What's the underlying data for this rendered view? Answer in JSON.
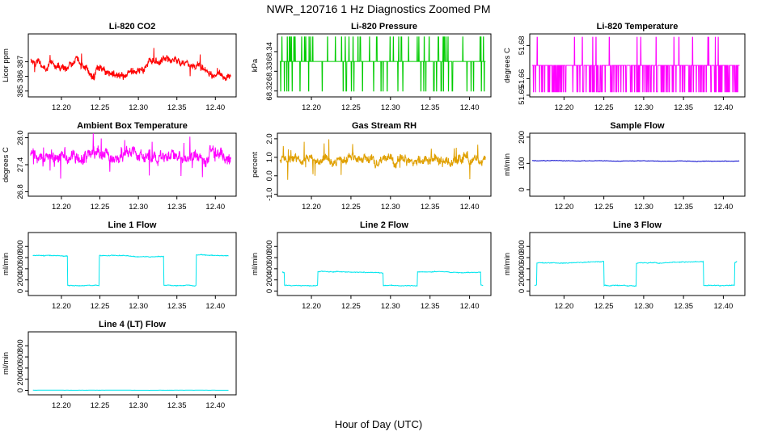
{
  "page": {
    "title": "NWR_120716  1 Hz Diagnostics Zoomed PM",
    "xlabel": "Hour of Day (UTC)"
  },
  "chart_data": [
    {
      "type": "line",
      "title": "Li-820 CO2",
      "ylabel": "Licor ppm",
      "color": "#ff0000",
      "xlim": [
        12.157,
        12.427
      ],
      "xticks": [
        "12.20",
        "12.25",
        "12.30",
        "12.35",
        "12.40"
      ],
      "ylim": [
        384.6,
        388.9
      ],
      "yticks": [
        "385",
        "386",
        "387"
      ],
      "series": [
        {
          "name": "co2",
          "x": [
            12.16,
            12.18,
            12.2,
            12.22,
            12.24,
            12.26,
            12.28,
            12.3,
            12.32,
            12.34,
            12.36,
            12.38,
            12.4,
            12.42
          ],
          "y": [
            387.0,
            386.8,
            386.5,
            387.0,
            386.2,
            386.3,
            386.0,
            386.3,
            386.9,
            387.2,
            387.0,
            386.6,
            386.2,
            386.0
          ]
        }
      ]
    },
    {
      "type": "line",
      "title": "Li-820 Pressure",
      "ylabel": "kPa",
      "color": "#00cc00",
      "xlim": [
        12.157,
        12.427
      ],
      "xticks": [
        "12.20",
        "12.25",
        "12.30",
        "12.35",
        "12.40"
      ],
      "ylim": [
        68.317,
        68.349
      ],
      "yticks": [
        "68.32",
        "68.33",
        "68.34"
      ],
      "series": [
        {
          "name": "pressure",
          "x": [
            12.16,
            12.2,
            12.25,
            12.3,
            12.35,
            12.4,
            12.42
          ],
          "y": [
            68.335,
            68.335,
            68.335,
            68.335,
            68.335,
            68.335,
            68.335
          ]
        }
      ]
    },
    {
      "type": "line",
      "title": "Li-820 Temperature",
      "ylabel": "degrees C",
      "color": "#ff00ff",
      "xlim": [
        12.157,
        12.427
      ],
      "xticks": [
        "12.20",
        "12.25",
        "12.30",
        "12.35",
        "12.40"
      ],
      "ylim": [
        51.649,
        51.687
      ],
      "yticks": [
        "51.65",
        "51.66",
        "51.68"
      ],
      "series": [
        {
          "name": "temperature",
          "x": [
            12.16,
            12.2,
            12.25,
            12.3,
            12.35,
            12.4,
            12.42
          ],
          "y": [
            51.668,
            51.668,
            51.668,
            51.668,
            51.668,
            51.668,
            51.668
          ]
        }
      ]
    },
    {
      "type": "line",
      "title": "Ambient Box Temperature",
      "ylabel": "degrees C",
      "color": "#ff00ff",
      "xlim": [
        12.157,
        12.427
      ],
      "xticks": [
        "12.20",
        "12.25",
        "12.30",
        "12.35",
        "12.40"
      ],
      "ylim": [
        26.7,
        28.1
      ],
      "yticks": [
        "26.8",
        "27.4",
        "28.0"
      ],
      "series": [
        {
          "name": "box_temperature",
          "x": [
            12.16,
            12.2,
            12.25,
            12.3,
            12.35,
            12.4,
            12.42
          ],
          "y": [
            27.6,
            27.55,
            27.6,
            27.55,
            27.6,
            27.6,
            27.55
          ]
        }
      ]
    },
    {
      "type": "line",
      "title": "Gas Stream RH",
      "ylabel": "percent",
      "color": "#e0a000",
      "xlim": [
        12.157,
        12.427
      ],
      "xticks": [
        "12.20",
        "12.25",
        "12.30",
        "12.35",
        "12.40"
      ],
      "ylim": [
        -1.1,
        2.3
      ],
      "yticks": [
        "-1.0",
        "0.0",
        "1.0",
        "2.0"
      ],
      "series": [
        {
          "name": "rh",
          "x": [
            12.16,
            12.2,
            12.25,
            12.3,
            12.35,
            12.4,
            12.42
          ],
          "y": [
            0.9,
            0.85,
            0.95,
            0.85,
            0.95,
            0.85,
            0.8
          ]
        }
      ]
    },
    {
      "type": "line",
      "title": "Sample Flow",
      "ylabel": "ml/min",
      "color": "#0000cc",
      "xlim": [
        12.157,
        12.427
      ],
      "xticks": [
        "12.20",
        "12.25",
        "12.30",
        "12.35",
        "12.40"
      ],
      "ylim": [
        -25,
        215
      ],
      "yticks": [
        "0",
        "100",
        "200"
      ],
      "series": [
        {
          "name": "sample_flow",
          "x": [
            12.16,
            12.42
          ],
          "y": [
            110,
            108
          ]
        }
      ]
    },
    {
      "type": "line",
      "title": "Line 1 Flow",
      "ylabel": "ml/min",
      "color": "#00e5ee",
      "xlim": [
        12.157,
        12.427
      ],
      "xticks": [
        "12.20",
        "12.25",
        "12.30",
        "12.35",
        "12.40"
      ],
      "ylim": [
        -80,
        1050
      ],
      "yticks": [
        "0",
        "200",
        "400",
        "600",
        "800"
      ],
      "series": [
        {
          "name": "line1",
          "x": [
            12.163,
            12.208,
            12.208,
            12.249,
            12.249,
            12.29,
            12.292,
            12.333,
            12.333,
            12.375,
            12.375,
            12.417
          ],
          "y": [
            640,
            630,
            100,
            100,
            640,
            630,
            620,
            620,
            100,
            100,
            650,
            630
          ]
        }
      ]
    },
    {
      "type": "line",
      "title": "Line 2 Flow",
      "ylabel": "ml/min",
      "color": "#00e5ee",
      "xlim": [
        12.157,
        12.427
      ],
      "xticks": [
        "12.20",
        "12.25",
        "12.30",
        "12.35",
        "12.40"
      ],
      "ylim": [
        -80,
        1050
      ],
      "yticks": [
        "0",
        "200",
        "400",
        "600",
        "800"
      ],
      "series": [
        {
          "name": "line2",
          "x": [
            12.163,
            12.166,
            12.166,
            12.208,
            12.208,
            12.291,
            12.291,
            12.334,
            12.334,
            12.414,
            12.414,
            12.417
          ],
          "y": [
            340,
            330,
            100,
            100,
            350,
            330,
            100,
            100,
            350,
            330,
            100,
            100
          ]
        }
      ]
    },
    {
      "type": "line",
      "title": "Line 3 Flow",
      "ylabel": "ml/min",
      "color": "#00e5ee",
      "xlim": [
        12.157,
        12.427
      ],
      "xticks": [
        "12.20",
        "12.25",
        "12.30",
        "12.35",
        "12.40"
      ],
      "ylim": [
        -80,
        1050
      ],
      "yticks": [
        "0",
        "200",
        "400",
        "600",
        "800"
      ],
      "series": [
        {
          "name": "line3",
          "x": [
            12.163,
            12.166,
            12.166,
            12.208,
            12.25,
            12.25,
            12.291,
            12.291,
            12.333,
            12.375,
            12.375,
            12.414,
            12.414,
            12.417
          ],
          "y": [
            100,
            100,
            500,
            510,
            530,
            100,
            100,
            500,
            510,
            530,
            100,
            100,
            500,
            530
          ]
        }
      ]
    },
    {
      "type": "line",
      "title": "Line 4 (LT) Flow",
      "ylabel": "ml/min",
      "color": "#00e5ee",
      "xlim": [
        12.157,
        12.427
      ],
      "xticks": [
        "12.20",
        "12.25",
        "12.30",
        "12.35",
        "12.40"
      ],
      "ylim": [
        -80,
        1050
      ],
      "yticks": [
        "0",
        "200",
        "400",
        "600",
        "800"
      ],
      "series": [
        {
          "name": "line4",
          "x": [
            12.163,
            12.417
          ],
          "y": [
            2,
            2
          ]
        }
      ]
    }
  ]
}
